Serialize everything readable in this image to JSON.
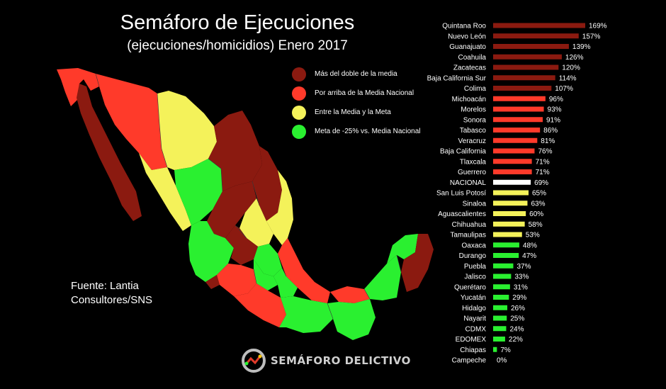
{
  "header": {
    "title": "Semáforo de Ejecuciones",
    "subtitle": "(ejecuciones/homicidios) Enero 2017"
  },
  "legend": {
    "items": [
      {
        "label": "Más del doble de la media",
        "color": "#8b1a10"
      },
      {
        "label": "Por arriba de la Media Nacional",
        "color": "#ff3a2a"
      },
      {
        "label": "Entre la Media y la Meta",
        "color": "#f4f25a"
      },
      {
        "label": "Meta de -25% vs. Media Nacional",
        "color": "#2af030"
      }
    ]
  },
  "source": {
    "text": "Fuente: Lantia Consultores/SNS"
  },
  "brand": {
    "name": "SEMÁFORO DELICTIVO"
  },
  "chart_data": {
    "type": "bar",
    "orientation": "horizontal",
    "categories": [
      "Quintana Roo",
      "Nuevo León",
      "Guanajuato",
      "Coahuila",
      "Zacatecas",
      "Baja California Sur",
      "Colima",
      "Michoacán",
      "Morelos",
      "Sonora",
      "Tabasco",
      "Veracruz",
      "Baja California",
      "Tlaxcala",
      "Guerrero",
      "NACIONAL",
      "San Luis Potosí",
      "Sinaloa",
      "Aguascalientes",
      "Chihuahua",
      "Tamaulipas",
      "Oaxaca",
      "Durango",
      "Puebla",
      "Jalisco",
      "Querétaro",
      "Yucatán",
      "Hidalgo",
      "Nayarit",
      "CDMX",
      "EDOMEX",
      "Chiapas",
      "Campeche"
    ],
    "values": [
      169,
      157,
      139,
      126,
      120,
      114,
      107,
      96,
      93,
      91,
      86,
      81,
      76,
      71,
      71,
      69,
      65,
      63,
      60,
      58,
      53,
      48,
      47,
      37,
      33,
      31,
      29,
      26,
      25,
      24,
      22,
      7,
      0
    ],
    "value_labels": [
      "169%",
      "157%",
      "139%",
      "126%",
      "120%",
      "114%",
      "107%",
      "96%",
      "93%",
      "91%",
      "86%",
      "81%",
      "76%",
      "71%",
      "71%",
      "69%",
      "65%",
      "63%",
      "60%",
      "58%",
      "53%",
      "48%",
      "47%",
      "37%",
      "33%",
      "31%",
      "29%",
      "26%",
      "25%",
      "24%",
      "22%",
      "7%",
      "0%"
    ],
    "colors": [
      "#8b1a10",
      "#8b1a10",
      "#8b1a10",
      "#8b1a10",
      "#8b1a10",
      "#8b1a10",
      "#8b1a10",
      "#ff3a2a",
      "#ff3a2a",
      "#ff3a2a",
      "#ff3a2a",
      "#ff3a2a",
      "#ff3a2a",
      "#ff3a2a",
      "#ff3a2a",
      "#ffffff",
      "#f4f25a",
      "#f4f25a",
      "#f4f25a",
      "#f4f25a",
      "#f4f25a",
      "#2af030",
      "#2af030",
      "#2af030",
      "#2af030",
      "#2af030",
      "#2af030",
      "#2af030",
      "#2af030",
      "#2af030",
      "#2af030",
      "#2af030",
      "#2af030"
    ],
    "xlim": [
      0,
      169
    ],
    "grid": false,
    "legend": "top-left"
  }
}
